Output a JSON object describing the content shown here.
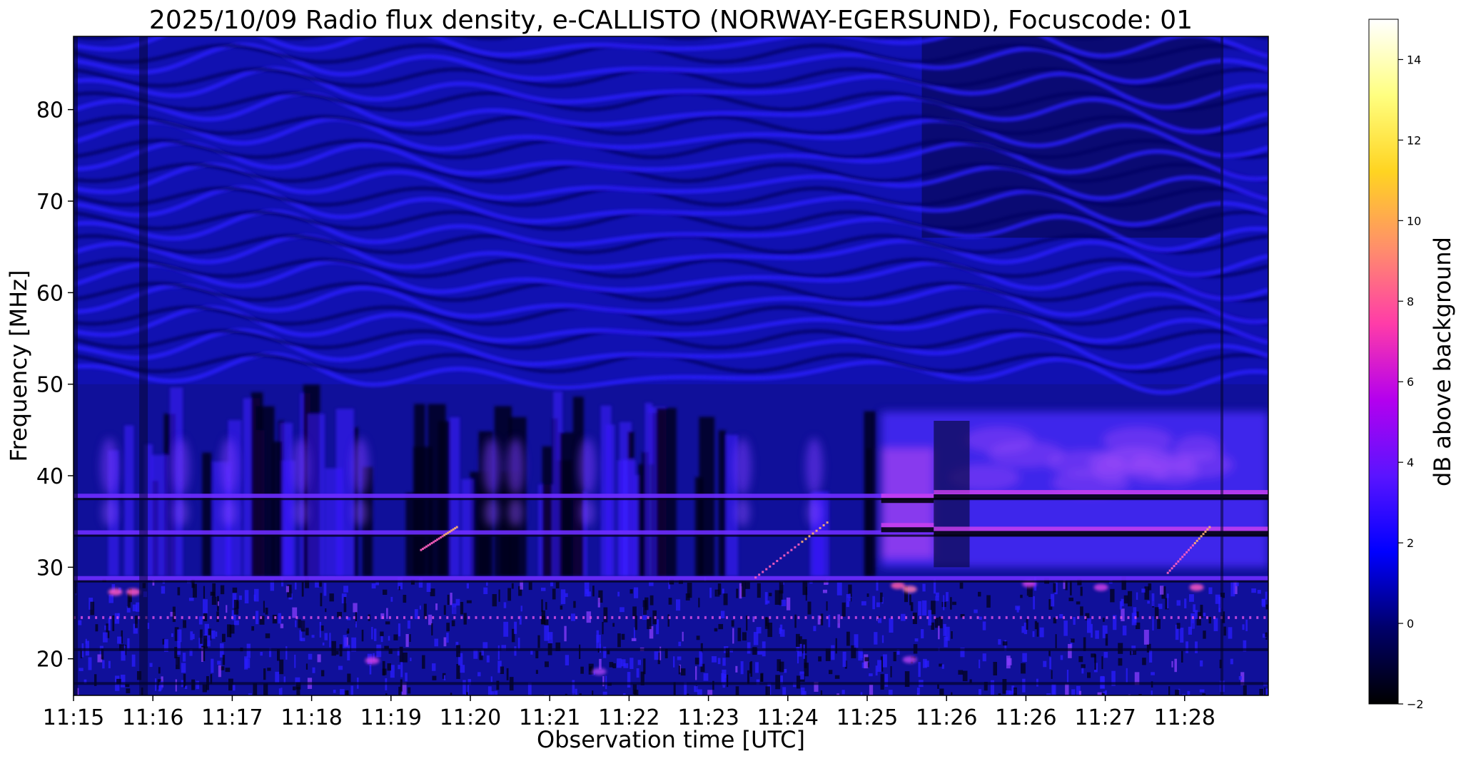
{
  "chart_data": {
    "type": "heatmap",
    "title": "2025/10/09  Radio flux density, e-CALLISTO (NORWAY-EGERSUND), Focuscode: 01",
    "xlabel": "Observation time [UTC]",
    "ylabel": "Frequency [MHz]",
    "x_ticks": [
      "11:15",
      "11:16",
      "11:17",
      "11:18",
      "11:19",
      "11:20",
      "11:21",
      "11:22",
      "11:23",
      "11:24",
      "11:25",
      "11:26",
      "11:26",
      "11:27",
      "11:28"
    ],
    "y_ticks": [
      20,
      30,
      40,
      50,
      60,
      70,
      80
    ],
    "ylim": [
      16,
      88
    ],
    "colorbar": {
      "label": "dB above background",
      "ticks": [
        -2,
        0,
        2,
        4,
        6,
        8,
        10,
        12,
        14
      ],
      "range": [
        -2,
        15
      ],
      "colormap": "gnuplot2",
      "stops": [
        "#000000",
        "#00006a",
        "#0000ff",
        "#5a14ff",
        "#b400ee",
        "#ff3ca8",
        "#ff8f6a",
        "#ffd421",
        "#ffff80",
        "#ffffff"
      ]
    },
    "grid": false,
    "features": [
      {
        "name": "horizontal line",
        "freq_mhz": 37.8,
        "t_start": "11:15",
        "t_end": "11:28"
      },
      {
        "name": "horizontal line",
        "freq_mhz": 33.8,
        "t_start": "11:15",
        "t_end": "11:28"
      },
      {
        "name": "horizontal line",
        "freq_mhz": 28.8,
        "t_start": "11:15",
        "t_end": "11:28"
      },
      {
        "name": "dotted line",
        "freq_mhz": 24.5,
        "t_start": "11:15",
        "t_end": "11:28"
      },
      {
        "name": "enhanced band",
        "t_start": "11:25",
        "freq_range_mhz": [
          25,
          47
        ]
      },
      {
        "name": "drifting feature",
        "points": [
          [
            0.915,
            29.5
          ],
          [
            0.95,
            34.5
          ]
        ]
      },
      {
        "name": "drifting feature",
        "points": [
          [
            0.57,
            29
          ],
          [
            0.63,
            35
          ]
        ]
      },
      {
        "name": "drifting feature",
        "points": [
          [
            0.29,
            32
          ],
          [
            0.32,
            34.5
          ]
        ]
      }
    ]
  }
}
